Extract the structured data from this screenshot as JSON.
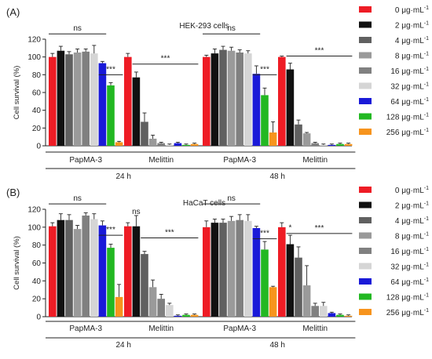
{
  "legend": {
    "items": [
      {
        "label": "0 μg·mL",
        "sup": "-1",
        "color": "#ee1c25"
      },
      {
        "label": "2 μg·mL",
        "sup": "-1",
        "color": "#111111"
      },
      {
        "label": "4 μg·mL",
        "sup": "-1",
        "color": "#606060"
      },
      {
        "label": "8 μg·mL",
        "sup": "-1",
        "color": "#9a9a9a"
      },
      {
        "label": "16 μg·mL",
        "sup": "-1",
        "color": "#808080"
      },
      {
        "label": "32 μg·mL",
        "sup": "-1",
        "color": "#d5d5d5"
      },
      {
        "label": "64 μg·mL",
        "sup": "-1",
        "color": "#1a1ad8"
      },
      {
        "label": "128 μg·mL",
        "sup": "-1",
        "color": "#22b822"
      },
      {
        "label": "256 μg·mL",
        "sup": "-1",
        "color": "#f7941d"
      }
    ]
  },
  "chart_data": [
    {
      "type": "bar",
      "panel_label": "(A)",
      "title": "HEK-293 cells",
      "ylabel": "Cell survival (%)",
      "ylim": [
        0,
        120
      ],
      "yticks": [
        0,
        20,
        40,
        60,
        80,
        100,
        120
      ],
      "group_labels": [
        "PapMA-3",
        "Melittin",
        "PapMA-3",
        "Melittin"
      ],
      "time_labels": [
        "24 h",
        "48 h"
      ],
      "series_labels": [
        "0 μg·mL-1",
        "2 μg·mL-1",
        "4 μg·mL-1",
        "8 μg·mL-1",
        "16 μg·mL-1",
        "32 μg·mL-1",
        "64 μg·mL-1",
        "128 μg·mL-1",
        "256 μg·mL-1"
      ],
      "groups": [
        {
          "values": [
            100,
            107,
            103,
            105,
            106,
            104,
            93,
            68,
            4
          ],
          "errors": [
            4,
            5,
            3,
            4,
            3,
            9,
            2,
            3,
            1
          ]
        },
        {
          "values": [
            100,
            77,
            27,
            8,
            3,
            1,
            3,
            1,
            2
          ],
          "errors": [
            4,
            6,
            10,
            4,
            1,
            1,
            1,
            1,
            1
          ]
        },
        {
          "values": [
            100,
            104,
            108,
            107,
            105,
            104,
            81,
            57,
            15
          ],
          "errors": [
            2,
            5,
            4,
            4,
            3,
            3,
            9,
            8,
            12
          ]
        },
        {
          "values": [
            100,
            86,
            24,
            14,
            3,
            1,
            1,
            2,
            2
          ],
          "errors": [
            1,
            7,
            5,
            1,
            1,
            1,
            1,
            1,
            1
          ]
        }
      ],
      "annotations": [
        {
          "group": 0,
          "text": "ns",
          "from": 0,
          "to": 6,
          "level": 126
        },
        {
          "group": 0,
          "text": "***",
          "from": 6,
          "to": 8,
          "level": 80
        },
        {
          "group": 1,
          "text": "***",
          "from": 1,
          "to": 8,
          "level": 92
        },
        {
          "group": 2,
          "text": "ns",
          "from": 0,
          "to": 6,
          "level": 126
        },
        {
          "group": 2,
          "text": "***",
          "from": 6,
          "to": 8,
          "level": 80
        },
        {
          "group": 3,
          "text": "***",
          "from": 1,
          "to": 8,
          "level": 101
        }
      ]
    },
    {
      "type": "bar",
      "panel_label": "(B)",
      "title": "HaCaT cells",
      "ylabel": "Cell survival (%)",
      "ylim": [
        0,
        120
      ],
      "yticks": [
        0,
        20,
        40,
        60,
        80,
        100,
        120
      ],
      "group_labels": [
        "PapMA-3",
        "Melittin",
        "PapMA-3",
        "Melittin"
      ],
      "time_labels": [
        "24 h",
        "48 h"
      ],
      "series_labels": [
        "0 μg·mL-1",
        "2 μg·mL-1",
        "4 μg·mL-1",
        "8 μg·mL-1",
        "16 μg·mL-1",
        "32 μg·mL-1",
        "64 μg·mL-1",
        "128 μg·mL-1",
        "256 μg·mL-1"
      ],
      "groups": [
        {
          "values": [
            101,
            108,
            108,
            98,
            113,
            109,
            102,
            77,
            22
          ],
          "errors": [
            4,
            7,
            6,
            4,
            3,
            6,
            5,
            4,
            14
          ]
        },
        {
          "values": [
            101,
            101,
            70,
            33,
            20,
            13,
            1,
            2,
            2
          ],
          "errors": [
            4,
            12,
            3,
            8,
            5,
            2,
            1,
            1,
            1
          ]
        },
        {
          "values": [
            100,
            105,
            105,
            107,
            108,
            107,
            99,
            75,
            33
          ],
          "errors": [
            7,
            4,
            4,
            5,
            6,
            7,
            2,
            9,
            1
          ]
        },
        {
          "values": [
            100,
            81,
            66,
            35,
            12,
            12,
            4,
            2,
            1
          ],
          "errors": [
            5,
            10,
            12,
            22,
            3,
            4,
            1,
            1,
            1
          ]
        }
      ],
      "annotations": [
        {
          "group": 0,
          "text": "ns",
          "from": 0,
          "to": 6,
          "level": 126
        },
        {
          "group": 0,
          "text": "***",
          "from": 6,
          "to": 8,
          "level": 91
        },
        {
          "group": 1,
          "text": "***",
          "from": 2,
          "to": 8,
          "level": 88
        },
        {
          "group": 1,
          "text": "ns",
          "single": 1,
          "level": 113
        },
        {
          "group": 2,
          "text": "ns",
          "from": 0,
          "to": 6,
          "level": 126
        },
        {
          "group": 2,
          "text": "***",
          "from": 6,
          "to": 8,
          "level": 87
        },
        {
          "group": 3,
          "text": "***",
          "from": 1,
          "to": 8,
          "level": 93
        },
        {
          "group": 3,
          "text": "*",
          "single": 1,
          "level": 95
        }
      ]
    }
  ]
}
